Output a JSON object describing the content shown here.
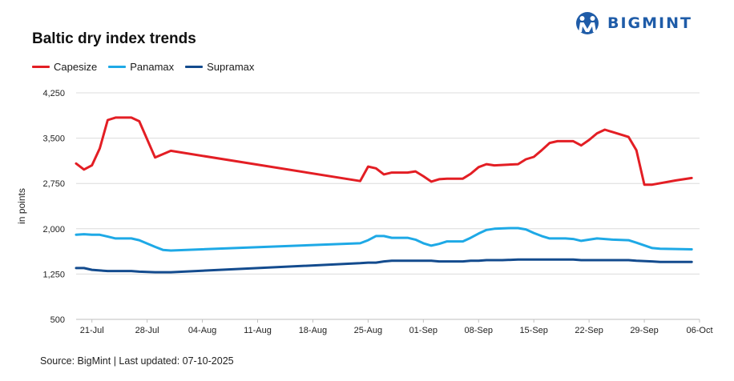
{
  "header": {
    "title": "Baltic dry index trends",
    "logo_text": "BIGMINT"
  },
  "footer": {
    "source_text": "Source: BigMint | Last updated: 07-10-2025"
  },
  "colors": {
    "capesize": "#e31e24",
    "panamax": "#1ea9e6",
    "supramax": "#134b8e",
    "logo": "#1f5ca8",
    "grid": "#dcdcdc"
  },
  "chart_data": {
    "type": "line",
    "title": "Baltic dry index trends",
    "ylabel": "in points",
    "xlabel": "",
    "ylim": [
      500,
      4250
    ],
    "yticks": [
      500,
      1250,
      2000,
      2750,
      3500,
      4250
    ],
    "ytick_labels": [
      "500",
      "1,250",
      "2,000",
      "2,750",
      "3,500",
      "4,250"
    ],
    "x_range": [
      "2025-07-19",
      "2025-10-06"
    ],
    "xticks": [
      "2025-07-21",
      "2025-07-28",
      "2025-08-04",
      "2025-08-11",
      "2025-08-18",
      "2025-08-25",
      "2025-09-01",
      "2025-09-08",
      "2025-09-15",
      "2025-09-22",
      "2025-09-29",
      "2025-10-06"
    ],
    "xtick_labels": [
      "21-Jul",
      "28-Jul",
      "04-Aug",
      "11-Aug",
      "18-Aug",
      "25-Aug",
      "01-Sep",
      "08-Sep",
      "15-Sep",
      "22-Sep",
      "29-Sep",
      "06-Oct"
    ],
    "grid": "horizontal",
    "legend_position": "top-left",
    "series": [
      {
        "name": "Capesize",
        "points": [
          [
            "2025-07-19",
            3080
          ],
          [
            "2025-07-20",
            2980
          ],
          [
            "2025-07-21",
            3050
          ],
          [
            "2025-07-22",
            3330
          ],
          [
            "2025-07-23",
            3800
          ],
          [
            "2025-07-24",
            3840
          ],
          [
            "2025-07-25",
            3840
          ],
          [
            "2025-07-26",
            3840
          ],
          [
            "2025-07-27",
            3780
          ],
          [
            "2025-07-29",
            3180
          ],
          [
            "2025-07-31",
            3290
          ],
          [
            "2025-08-24",
            2790
          ],
          [
            "2025-08-25",
            3030
          ],
          [
            "2025-08-26",
            3000
          ],
          [
            "2025-08-27",
            2900
          ],
          [
            "2025-08-28",
            2930
          ],
          [
            "2025-08-29",
            2930
          ],
          [
            "2025-08-30",
            2930
          ],
          [
            "2025-08-31",
            2950
          ],
          [
            "2025-09-01",
            2870
          ],
          [
            "2025-09-02",
            2780
          ],
          [
            "2025-09-03",
            2820
          ],
          [
            "2025-09-04",
            2830
          ],
          [
            "2025-09-05",
            2830
          ],
          [
            "2025-09-06",
            2830
          ],
          [
            "2025-09-07",
            2910
          ],
          [
            "2025-09-08",
            3020
          ],
          [
            "2025-09-09",
            3070
          ],
          [
            "2025-09-10",
            3050
          ],
          [
            "2025-09-13",
            3070
          ],
          [
            "2025-09-14",
            3150
          ],
          [
            "2025-09-15",
            3190
          ],
          [
            "2025-09-16",
            3300
          ],
          [
            "2025-09-17",
            3420
          ],
          [
            "2025-09-18",
            3450
          ],
          [
            "2025-09-20",
            3450
          ],
          [
            "2025-09-21",
            3380
          ],
          [
            "2025-09-22",
            3470
          ],
          [
            "2025-09-23",
            3580
          ],
          [
            "2025-09-24",
            3640
          ],
          [
            "2025-09-27",
            3520
          ],
          [
            "2025-09-28",
            3300
          ],
          [
            "2025-09-29",
            2730
          ],
          [
            "2025-09-30",
            2730
          ],
          [
            "2025-10-03",
            2800
          ],
          [
            "2025-10-05",
            2840
          ]
        ]
      },
      {
        "name": "Panamax",
        "points": [
          [
            "2025-07-19",
            1900
          ],
          [
            "2025-07-20",
            1910
          ],
          [
            "2025-07-21",
            1900
          ],
          [
            "2025-07-22",
            1900
          ],
          [
            "2025-07-23",
            1870
          ],
          [
            "2025-07-24",
            1840
          ],
          [
            "2025-07-25",
            1840
          ],
          [
            "2025-07-26",
            1840
          ],
          [
            "2025-07-27",
            1810
          ],
          [
            "2025-07-29",
            1700
          ],
          [
            "2025-07-30",
            1650
          ],
          [
            "2025-07-31",
            1640
          ],
          [
            "2025-08-24",
            1760
          ],
          [
            "2025-08-25",
            1810
          ],
          [
            "2025-08-26",
            1880
          ],
          [
            "2025-08-27",
            1880
          ],
          [
            "2025-08-28",
            1850
          ],
          [
            "2025-08-29",
            1850
          ],
          [
            "2025-08-30",
            1850
          ],
          [
            "2025-08-31",
            1820
          ],
          [
            "2025-09-01",
            1760
          ],
          [
            "2025-09-02",
            1720
          ],
          [
            "2025-09-03",
            1750
          ],
          [
            "2025-09-04",
            1790
          ],
          [
            "2025-09-05",
            1790
          ],
          [
            "2025-09-06",
            1790
          ],
          [
            "2025-09-07",
            1850
          ],
          [
            "2025-09-08",
            1920
          ],
          [
            "2025-09-09",
            1980
          ],
          [
            "2025-09-10",
            2000
          ],
          [
            "2025-09-12",
            2010
          ],
          [
            "2025-09-13",
            2010
          ],
          [
            "2025-09-14",
            1990
          ],
          [
            "2025-09-15",
            1930
          ],
          [
            "2025-09-16",
            1880
          ],
          [
            "2025-09-17",
            1840
          ],
          [
            "2025-09-19",
            1840
          ],
          [
            "2025-09-20",
            1830
          ],
          [
            "2025-09-21",
            1800
          ],
          [
            "2025-09-22",
            1820
          ],
          [
            "2025-09-23",
            1840
          ],
          [
            "2025-09-25",
            1820
          ],
          [
            "2025-09-27",
            1810
          ],
          [
            "2025-09-28",
            1770
          ],
          [
            "2025-09-30",
            1680
          ],
          [
            "2025-10-01",
            1670
          ],
          [
            "2025-10-05",
            1660
          ]
        ]
      },
      {
        "name": "Supramax",
        "points": [
          [
            "2025-07-19",
            1350
          ],
          [
            "2025-07-20",
            1350
          ],
          [
            "2025-07-21",
            1320
          ],
          [
            "2025-07-22",
            1310
          ],
          [
            "2025-07-23",
            1300
          ],
          [
            "2025-07-25",
            1300
          ],
          [
            "2025-07-26",
            1300
          ],
          [
            "2025-07-27",
            1290
          ],
          [
            "2025-07-29",
            1280
          ],
          [
            "2025-07-31",
            1280
          ],
          [
            "2025-08-24",
            1430
          ],
          [
            "2025-08-25",
            1440
          ],
          [
            "2025-08-26",
            1440
          ],
          [
            "2025-08-27",
            1460
          ],
          [
            "2025-08-28",
            1470
          ],
          [
            "2025-08-29",
            1470
          ],
          [
            "2025-09-01",
            1470
          ],
          [
            "2025-09-02",
            1470
          ],
          [
            "2025-09-03",
            1460
          ],
          [
            "2025-09-06",
            1460
          ],
          [
            "2025-09-07",
            1470
          ],
          [
            "2025-09-08",
            1470
          ],
          [
            "2025-09-09",
            1480
          ],
          [
            "2025-09-11",
            1480
          ],
          [
            "2025-09-13",
            1490
          ],
          [
            "2025-09-20",
            1490
          ],
          [
            "2025-09-21",
            1480
          ],
          [
            "2025-09-27",
            1480
          ],
          [
            "2025-09-28",
            1470
          ],
          [
            "2025-09-30",
            1460
          ],
          [
            "2025-10-01",
            1450
          ],
          [
            "2025-10-05",
            1450
          ]
        ]
      }
    ]
  }
}
